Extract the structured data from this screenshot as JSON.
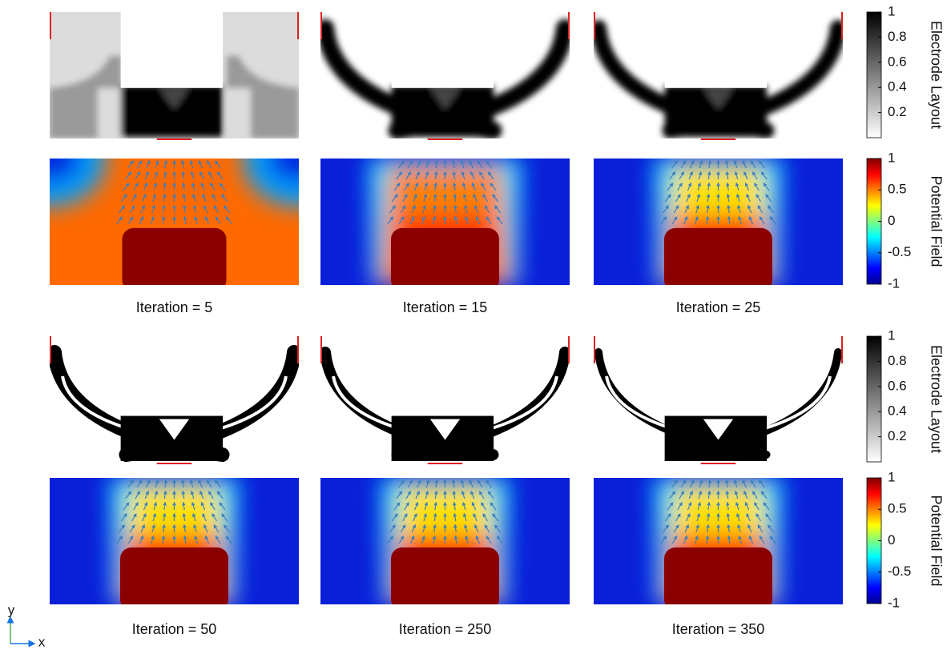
{
  "colorbars": {
    "layout": {
      "title": "Electrode Layout",
      "lim": [
        0,
        1
      ],
      "ticks": [
        0.2,
        0.4,
        0.6,
        0.8,
        1
      ]
    },
    "field": {
      "title": "Potential Field",
      "lim": [
        -1,
        1
      ],
      "ticks": [
        -1,
        -0.5,
        0,
        0.5,
        1
      ]
    }
  },
  "panels": [
    {
      "label": "Iteration = 5"
    },
    {
      "label": "Iteration = 15"
    },
    {
      "label": "Iteration = 25"
    },
    {
      "label": "Iteration = 50"
    },
    {
      "label": "Iteration = 250"
    },
    {
      "label": "Iteration = 350"
    }
  ],
  "axes": {
    "x": "x",
    "y": "y"
  }
}
